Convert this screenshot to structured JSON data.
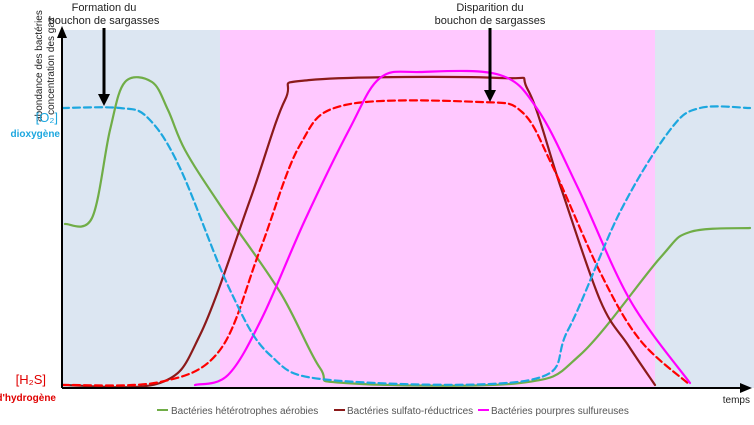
{
  "annotations": {
    "formation": [
      "Formation du",
      "bouchon de sargasses"
    ],
    "disparition": [
      "Disparition du",
      "bouchon de sargasses"
    ]
  },
  "y_axis_label": [
    "abondance des bactéries",
    "concentration des gaz"
  ],
  "x_axis_label": "temps",
  "gases": {
    "o2": {
      "symbol": "[O₂]",
      "name": "dioxygène"
    },
    "h2s": {
      "symbol": "[H₂S]",
      "name": "sulfure d'hydrogène"
    }
  },
  "legend": [
    "Bactéries hétérotrophes aérobies",
    "Bactéries sulfato-réductrices",
    "Bactéries pourpres sulfureuses"
  ]
}
